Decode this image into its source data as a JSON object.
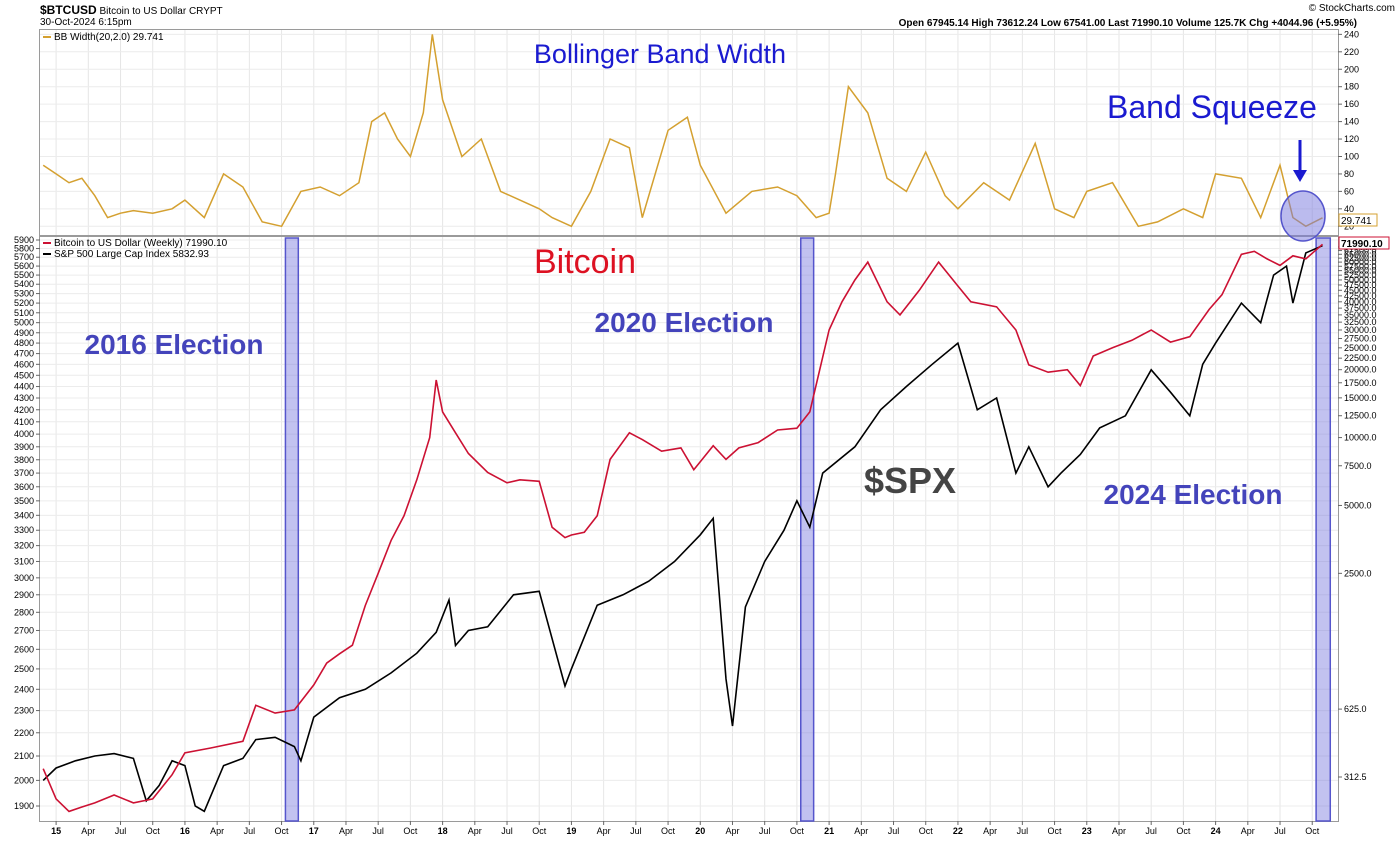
{
  "header": {
    "symbol": "$BTCUSD",
    "name": "Bitcoin to US Dollar",
    "exchange": "CRYPT",
    "date": "30-Oct-2024 6:15pm",
    "ohlc": "Open 67945.14  High 73612.24  Low 67541.00  Last 71990.10  Volume 125.7K  Chg +4044.96 (+5.95%)",
    "credit": "© StockCharts.com"
  },
  "top_panel": {
    "legend": "BB Width(20,2.0) 29.741",
    "title": "Bollinger Band Width",
    "last_value_tag": "29.741",
    "annotation": "Band Squeeze",
    "line_color": "#d4a030"
  },
  "main_panel": {
    "legend_btc": "Bitcoin to US Dollar (Weekly) 71990.10",
    "legend_spx": "S&P 500 Large Cap Index 5832.93",
    "btc_label": "Bitcoin",
    "spx_label": "$SPX",
    "last_value_tag": "71990.10",
    "btc_color": "#cc1133",
    "spx_color": "#000000",
    "highlight_color": "#7777dd",
    "elections": [
      "2016 Election",
      "2020 Election",
      "2024 Election"
    ]
  },
  "chart_data": [
    {
      "type": "line",
      "title": "Bollinger Band Width",
      "series": [
        {
          "name": "BB Width(20,2.0)",
          "x": [
            2014.9,
            2015.0,
            2015.1,
            2015.2,
            2015.3,
            2015.4,
            2015.5,
            2015.6,
            2015.75,
            2015.9,
            2016.0,
            2016.15,
            2016.3,
            2016.45,
            2016.6,
            2016.75,
            2016.9,
            2017.05,
            2017.2,
            2017.35,
            2017.45,
            2017.55,
            2017.65,
            2017.75,
            2017.85,
            2017.92,
            2018.0,
            2018.15,
            2018.3,
            2018.45,
            2018.6,
            2018.75,
            2018.85,
            2019.0,
            2019.15,
            2019.3,
            2019.45,
            2019.55,
            2019.75,
            2019.9,
            2020.0,
            2020.2,
            2020.4,
            2020.6,
            2020.75,
            2020.9,
            2021.0,
            2021.05,
            2021.15,
            2021.3,
            2021.45,
            2021.6,
            2021.75,
            2021.9,
            2022.0,
            2022.2,
            2022.4,
            2022.6,
            2022.75,
            2022.9,
            2023.0,
            2023.2,
            2023.4,
            2023.55,
            2023.75,
            2023.9,
            2024.0,
            2024.2,
            2024.35,
            2024.5,
            2024.6,
            2024.7,
            2024.83
          ],
          "values": [
            90,
            80,
            70,
            75,
            55,
            30,
            35,
            38,
            35,
            40,
            50,
            30,
            80,
            65,
            25,
            20,
            60,
            65,
            55,
            70,
            140,
            150,
            120,
            100,
            150,
            240,
            165,
            100,
            120,
            60,
            50,
            40,
            30,
            20,
            60,
            120,
            110,
            30,
            130,
            145,
            90,
            35,
            60,
            65,
            55,
            30,
            35,
            80,
            180,
            150,
            75,
            60,
            105,
            55,
            40,
            70,
            50,
            115,
            40,
            30,
            60,
            70,
            20,
            25,
            40,
            30,
            80,
            75,
            30,
            90,
            30,
            20,
            29.741
          ]
        }
      ],
      "y_ticks": [
        20,
        40,
        60,
        80,
        100,
        120,
        140,
        160,
        180,
        200,
        220,
        240
      ],
      "ylim": [
        10,
        245
      ]
    },
    {
      "type": "line",
      "title": "Bitcoin",
      "series": [
        {
          "name": "Bitcoin to US Dollar (Weekly)",
          "x": [
            2014.9,
            2015.0,
            2015.1,
            2015.2,
            2015.3,
            2015.45,
            2015.6,
            2015.75,
            2015.9,
            2016.0,
            2016.2,
            2016.45,
            2016.55,
            2016.7,
            2016.85,
            2017.0,
            2017.1,
            2017.2,
            2017.3,
            2017.4,
            2017.5,
            2017.6,
            2017.7,
            2017.8,
            2017.9,
            2017.95,
            2018.0,
            2018.1,
            2018.2,
            2018.35,
            2018.5,
            2018.6,
            2018.75,
            2018.85,
            2018.95,
            2019.0,
            2019.1,
            2019.2,
            2019.3,
            2019.45,
            2019.55,
            2019.7,
            2019.85,
            2019.95,
            2020.1,
            2020.2,
            2020.3,
            2020.45,
            2020.6,
            2020.75,
            2020.85,
            2021.0,
            2021.1,
            2021.2,
            2021.3,
            2021.45,
            2021.55,
            2021.7,
            2021.85,
            2022.0,
            2022.1,
            2022.3,
            2022.45,
            2022.55,
            2022.7,
            2022.85,
            2022.95,
            2023.05,
            2023.2,
            2023.35,
            2023.5,
            2023.65,
            2023.8,
            2023.95,
            2024.05,
            2024.2,
            2024.3,
            2024.4,
            2024.5,
            2024.6,
            2024.7,
            2024.83
          ],
          "values": [
            340,
            250,
            220,
            230,
            240,
            260,
            240,
            250,
            320,
            400,
            420,
            450,
            650,
            600,
            620,
            800,
            1000,
            1100,
            1200,
            1800,
            2500,
            3500,
            4500,
            6500,
            10000,
            18000,
            13000,
            10500,
            8500,
            7000,
            6300,
            6500,
            6400,
            4000,
            3600,
            3700,
            3800,
            4500,
            8000,
            10500,
            9800,
            8700,
            9000,
            7200,
            9200,
            8000,
            9000,
            9500,
            10800,
            11000,
            13000,
            30000,
            40000,
            50000,
            60000,
            40000,
            35000,
            45000,
            60000,
            47000,
            40000,
            38000,
            30000,
            21000,
            19500,
            20000,
            17000,
            23000,
            25000,
            27000,
            30000,
            26500,
            28000,
            37000,
            43000,
            65000,
            67000,
            62000,
            58000,
            64000,
            62000,
            71990.1
          ]
        },
        {
          "name": "S&P 500 Large Cap Index",
          "x": [
            2014.9,
            2015.0,
            2015.15,
            2015.3,
            2015.45,
            2015.6,
            2015.7,
            2015.8,
            2015.9,
            2016.0,
            2016.08,
            2016.15,
            2016.3,
            2016.45,
            2016.55,
            2016.7,
            2016.85,
            2016.9,
            2017.0,
            2017.2,
            2017.4,
            2017.6,
            2017.8,
            2017.95,
            2018.05,
            2018.1,
            2018.2,
            2018.35,
            2018.55,
            2018.75,
            2018.95,
            2019.0,
            2019.2,
            2019.4,
            2019.6,
            2019.8,
            2020.0,
            2020.1,
            2020.2,
            2020.25,
            2020.35,
            2020.5,
            2020.65,
            2020.75,
            2020.85,
            2020.95,
            2021.2,
            2021.4,
            2021.6,
            2021.8,
            2022.0,
            2022.15,
            2022.3,
            2022.45,
            2022.55,
            2022.7,
            2022.8,
            2022.95,
            2023.1,
            2023.3,
            2023.5,
            2023.65,
            2023.8,
            2023.9,
            2024.0,
            2024.2,
            2024.35,
            2024.45,
            2024.55,
            2024.6,
            2024.7,
            2024.83
          ],
          "values": [
            2000,
            2050,
            2080,
            2100,
            2110,
            2090,
            1920,
            1980,
            2080,
            2060,
            1900,
            1880,
            2060,
            2090,
            2170,
            2180,
            2140,
            2080,
            2270,
            2360,
            2400,
            2480,
            2580,
            2690,
            2870,
            2620,
            2700,
            2720,
            2900,
            2920,
            2416,
            2500,
            2840,
            2900,
            2980,
            3100,
            3270,
            3380,
            2450,
            2230,
            2830,
            3100,
            3300,
            3500,
            3320,
            3700,
            3900,
            4200,
            4400,
            4600,
            4800,
            4200,
            4300,
            3700,
            3900,
            3600,
            3700,
            3840,
            4050,
            4150,
            4550,
            4350,
            4150,
            4600,
            4800,
            5200,
            5000,
            5500,
            5600,
            5200,
            5750,
            5832.93
          ]
        }
      ],
      "annotations": [
        "2016 Election",
        "2020 Election",
        "2024 Election",
        "$SPX",
        "Bitcoin"
      ],
      "spx_ticks": [
        1900,
        2000,
        2100,
        2200,
        2300,
        2400,
        2500,
        2600,
        2700,
        2800,
        2900,
        3000,
        3100,
        3200,
        3300,
        3400,
        3500,
        3600,
        3700,
        3800,
        3900,
        4000,
        4100,
        4200,
        4300,
        4400,
        4500,
        4600,
        4700,
        4800,
        4900,
        5000,
        5100,
        5200,
        5300,
        5400,
        5500,
        5600,
        5700,
        5800,
        5900
      ],
      "btc_ticks": [
        312.5,
        625,
        2500,
        5000,
        7500,
        10000,
        12500,
        15000,
        17500,
        20000,
        22500,
        25000,
        27500,
        30000,
        32500,
        35000,
        37500,
        40000,
        42500,
        45000,
        47500,
        50000,
        52500,
        55000,
        57500,
        60000,
        62500,
        65000,
        67500,
        70000
      ],
      "x_ticks": [
        "15",
        "Apr",
        "Jul",
        "Oct",
        "16",
        "Apr",
        "Jul",
        "Oct",
        "17",
        "Apr",
        "Jul",
        "Oct",
        "18",
        "Apr",
        "Jul",
        "Oct",
        "19",
        "Apr",
        "Jul",
        "Oct",
        "20",
        "Apr",
        "Jul",
        "Oct",
        "21",
        "Apr",
        "Jul",
        "Oct",
        "22",
        "Apr",
        "Jul",
        "Oct",
        "23",
        "Apr",
        "Jul",
        "Oct",
        "24",
        "Apr",
        "Jul",
        "Oct"
      ],
      "xlim": [
        2014.875,
        2024.95
      ],
      "btc_scale": "log",
      "spx_scale": "log"
    }
  ]
}
